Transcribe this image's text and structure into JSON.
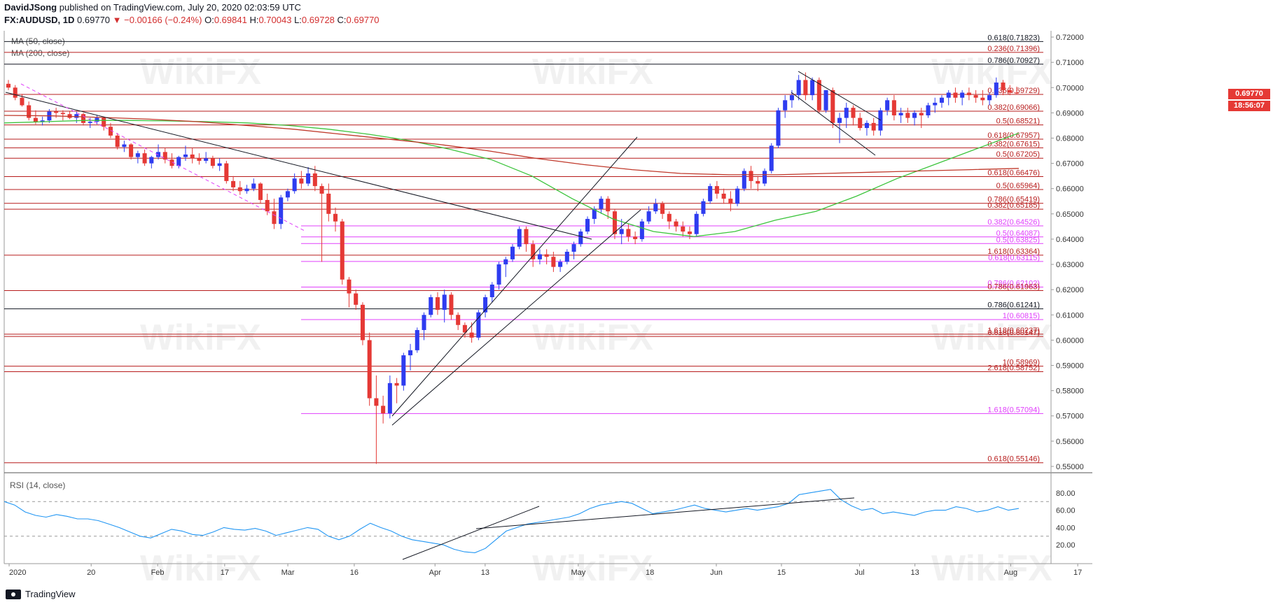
{
  "header": {
    "publisher": "DavidJSong",
    "published_text": "published on TradingView.com, July 20, 2020 02:03:59 UTC",
    "symbol": "FX:AUDUSD, 1D",
    "last": "0.69770",
    "change": "▼ −0.00166 (−0.24%)",
    "o_label": "O:",
    "o": "0.69841",
    "h_label": "H:",
    "h": "0.70043",
    "l_label": "L:",
    "l": "0.69728",
    "c_label": "C:",
    "c": "0.69770"
  },
  "indicators": {
    "ma50": "MA (50, close)",
    "ma200": "MA (200, close)",
    "rsi": "RSI (14, close)"
  },
  "price_badge": {
    "last": "0.69770",
    "countdown": "18:56:07",
    "color": "#e53935"
  },
  "watermark": "WikiFX",
  "footer": {
    "brand": "TradingView"
  },
  "colors": {
    "up": "#2e3cf0",
    "down": "#e53935",
    "ma50": "#3cc43c",
    "ma200": "#c0392b",
    "rsi": "#2196f3",
    "fib_red": "#b71c1c",
    "fib_magenta": "#e040fb",
    "fib_black": "#131722"
  },
  "chart_data": {
    "type": "candlestick",
    "title": "",
    "ylim": [
      0.5475,
      0.7225
    ],
    "yticks": [
      "0.72000",
      "0.71000",
      "0.70000",
      "0.69000",
      "0.68000",
      "0.67000",
      "0.66000",
      "0.65000",
      "0.64000",
      "0.63000",
      "0.62000",
      "0.61000",
      "0.60000",
      "0.59000",
      "0.58000",
      "0.57000",
      "0.56000",
      "0.55000"
    ],
    "xticks": [
      "2020",
      "20",
      "Feb",
      "17",
      "Mar",
      "16",
      "Apr",
      "13",
      "May",
      "18",
      "Jun",
      "15",
      "Jul",
      "13",
      "Aug",
      "17"
    ],
    "rsi_ticks": [
      "80.00",
      "60.00",
      "40.00",
      "20.00"
    ],
    "rsi_levels": [
      70,
      30
    ],
    "fib_levels": [
      {
        "label": "0.618(0.71823)",
        "value": 0.71823,
        "color": "black"
      },
      {
        "label": "0.236(0.71396)",
        "value": 0.71396,
        "color": "red"
      },
      {
        "label": "0.786(0.70927)",
        "value": 0.70927,
        "color": "black"
      },
      {
        "label": "0.236(0.69729)",
        "value": 0.69729,
        "color": "red"
      },
      {
        "label": "0.382(0.69066)",
        "value": 0.69066,
        "color": "red"
      },
      {
        "label": "0.5(0.68521)",
        "value": 0.68521,
        "color": "red"
      },
      {
        "label": "0.618(0.67957)",
        "value": 0.67957,
        "color": "red"
      },
      {
        "label": "0.382(0.67615)",
        "value": 0.67615,
        "color": "red"
      },
      {
        "label": "0.5(0.67205)",
        "value": 0.67205,
        "color": "red"
      },
      {
        "label": "0.618(0.66476)",
        "value": 0.66476,
        "color": "red"
      },
      {
        "label": "0.5(0.65964)",
        "value": 0.65964,
        "color": "red"
      },
      {
        "label": "0.786(0.65419)",
        "value": 0.65419,
        "color": "red"
      },
      {
        "label": "0.382(0.65185)",
        "value": 0.65185,
        "color": "red"
      },
      {
        "label": "0.382(0.64526)",
        "value": 0.64526,
        "color": "magenta"
      },
      {
        "label": "0.5(0.64087)",
        "value": 0.64087,
        "color": "magenta"
      },
      {
        "label": "0.5(0.63825)",
        "value": 0.63825,
        "color": "magenta"
      },
      {
        "label": "1.618(0.63364)",
        "value": 0.63364,
        "color": "red"
      },
      {
        "label": "0.618(0.63115)",
        "value": 0.63115,
        "color": "magenta"
      },
      {
        "label": "0.786(0.62102)",
        "value": 0.62102,
        "color": "magenta"
      },
      {
        "label": "0.786(0.61963)",
        "value": 0.61963,
        "color": "red"
      },
      {
        "label": "0.786(0.61241)",
        "value": 0.61241,
        "color": "black"
      },
      {
        "label": "1(0.60815)",
        "value": 0.60815,
        "color": "magenta"
      },
      {
        "label": "1.618(0.60237)",
        "value": 0.60237,
        "color": "red"
      },
      {
        "label": "0.618(0.60147)",
        "value": 0.60147,
        "color": "red"
      },
      {
        "label": "1(0.58969)",
        "value": 0.58969,
        "color": "red"
      },
      {
        "label": "2.618(0.58752)",
        "value": 0.58752,
        "color": "red"
      },
      {
        "label": "1.618(0.57094)",
        "value": 0.57094,
        "color": "magenta"
      },
      {
        "label": "0.618(0.55146)",
        "value": 0.55146,
        "color": "red"
      }
    ],
    "candles": [
      [
        0.7015,
        0.703,
        0.699,
        0.7
      ],
      [
        0.7,
        0.701,
        0.695,
        0.696
      ],
      [
        0.696,
        0.6975,
        0.6925,
        0.693
      ],
      [
        0.693,
        0.6945,
        0.687,
        0.688
      ],
      [
        0.688,
        0.691,
        0.6855,
        0.6865
      ],
      [
        0.6865,
        0.6885,
        0.685,
        0.687
      ],
      [
        0.687,
        0.6915,
        0.686,
        0.6905
      ],
      [
        0.6905,
        0.692,
        0.688,
        0.69
      ],
      [
        0.69,
        0.691,
        0.687,
        0.6895
      ],
      [
        0.6895,
        0.6905,
        0.6875,
        0.688
      ],
      [
        0.688,
        0.6905,
        0.686,
        0.6895
      ],
      [
        0.6895,
        0.69,
        0.685,
        0.686
      ],
      [
        0.686,
        0.688,
        0.684,
        0.6865
      ],
      [
        0.6865,
        0.689,
        0.6855,
        0.688
      ],
      [
        0.688,
        0.6885,
        0.683,
        0.6845
      ],
      [
        0.6845,
        0.686,
        0.68,
        0.681
      ],
      [
        0.681,
        0.682,
        0.6755,
        0.6765
      ],
      [
        0.6765,
        0.679,
        0.6745,
        0.6775
      ],
      [
        0.6775,
        0.678,
        0.6715,
        0.6725
      ],
      [
        0.6725,
        0.675,
        0.67,
        0.674
      ],
      [
        0.674,
        0.6755,
        0.669,
        0.67
      ],
      [
        0.67,
        0.673,
        0.668,
        0.6725
      ],
      [
        0.6725,
        0.6775,
        0.6715,
        0.6745
      ],
      [
        0.6745,
        0.676,
        0.67,
        0.6715
      ],
      [
        0.6715,
        0.674,
        0.668,
        0.669
      ],
      [
        0.669,
        0.673,
        0.668,
        0.6725
      ],
      [
        0.6725,
        0.677,
        0.671,
        0.6735
      ],
      [
        0.6735,
        0.676,
        0.67,
        0.672
      ],
      [
        0.672,
        0.674,
        0.6695,
        0.671
      ],
      [
        0.671,
        0.6745,
        0.67,
        0.672
      ],
      [
        0.672,
        0.673,
        0.668,
        0.669
      ],
      [
        0.669,
        0.672,
        0.667,
        0.67
      ],
      [
        0.67,
        0.671,
        0.662,
        0.663
      ],
      [
        0.663,
        0.665,
        0.659,
        0.6605
      ],
      [
        0.6605,
        0.663,
        0.6575,
        0.659
      ],
      [
        0.659,
        0.6615,
        0.658,
        0.66
      ],
      [
        0.66,
        0.664,
        0.659,
        0.662
      ],
      [
        0.662,
        0.6625,
        0.654,
        0.6555
      ],
      [
        0.6555,
        0.658,
        0.6495,
        0.651
      ],
      [
        0.651,
        0.656,
        0.644,
        0.646
      ],
      [
        0.646,
        0.6575,
        0.644,
        0.6565
      ],
      [
        0.6565,
        0.66,
        0.655,
        0.659
      ],
      [
        0.659,
        0.666,
        0.658,
        0.664
      ],
      [
        0.664,
        0.667,
        0.66,
        0.662
      ],
      [
        0.662,
        0.6685,
        0.661,
        0.666
      ],
      [
        0.666,
        0.669,
        0.659,
        0.661
      ],
      [
        0.661,
        0.662,
        0.631,
        0.658
      ],
      [
        0.658,
        0.662,
        0.647,
        0.65
      ],
      [
        0.65,
        0.6525,
        0.643,
        0.647
      ],
      [
        0.647,
        0.648,
        0.622,
        0.624
      ],
      [
        0.624,
        0.625,
        0.613,
        0.6185
      ],
      [
        0.6185,
        0.62,
        0.612,
        0.614
      ],
      [
        0.614,
        0.615,
        0.598,
        0.6
      ],
      [
        0.6,
        0.603,
        0.574,
        0.577
      ],
      [
        0.577,
        0.586,
        0.551,
        0.574
      ],
      [
        0.574,
        0.578,
        0.567,
        0.571
      ],
      [
        0.571,
        0.586,
        0.569,
        0.583
      ],
      [
        0.583,
        0.585,
        0.575,
        0.582
      ],
      [
        0.582,
        0.595,
        0.58,
        0.594
      ],
      [
        0.594,
        0.5985,
        0.588,
        0.596
      ],
      [
        0.596,
        0.605,
        0.595,
        0.604
      ],
      [
        0.604,
        0.611,
        0.6,
        0.61
      ],
      [
        0.61,
        0.618,
        0.609,
        0.617
      ],
      [
        0.617,
        0.619,
        0.61,
        0.612
      ],
      [
        0.612,
        0.62,
        0.607,
        0.618
      ],
      [
        0.618,
        0.619,
        0.608,
        0.61
      ],
      [
        0.61,
        0.611,
        0.604,
        0.606
      ],
      [
        0.606,
        0.607,
        0.601,
        0.603
      ],
      [
        0.603,
        0.607,
        0.599,
        0.601
      ],
      [
        0.601,
        0.612,
        0.6,
        0.611
      ],
      [
        0.611,
        0.618,
        0.609,
        0.617
      ],
      [
        0.617,
        0.623,
        0.615,
        0.622
      ],
      [
        0.622,
        0.631,
        0.62,
        0.63
      ],
      [
        0.63,
        0.633,
        0.625,
        0.632
      ],
      [
        0.632,
        0.638,
        0.631,
        0.637
      ],
      [
        0.637,
        0.645,
        0.636,
        0.644
      ],
      [
        0.644,
        0.645,
        0.635,
        0.638
      ],
      [
        0.638,
        0.6395,
        0.629,
        0.632
      ],
      [
        0.632,
        0.636,
        0.63,
        0.634
      ],
      [
        0.634,
        0.636,
        0.63,
        0.633
      ],
      [
        0.633,
        0.635,
        0.627,
        0.629
      ],
      [
        0.629,
        0.632,
        0.627,
        0.631
      ],
      [
        0.631,
        0.636,
        0.63,
        0.635
      ],
      [
        0.635,
        0.639,
        0.632,
        0.638
      ],
      [
        0.638,
        0.644,
        0.637,
        0.643
      ],
      [
        0.643,
        0.649,
        0.642,
        0.648
      ],
      [
        0.648,
        0.653,
        0.646,
        0.652
      ],
      [
        0.652,
        0.657,
        0.65,
        0.656
      ],
      [
        0.656,
        0.657,
        0.648,
        0.651
      ],
      [
        0.651,
        0.652,
        0.64,
        0.642
      ],
      [
        0.642,
        0.648,
        0.638,
        0.644
      ],
      [
        0.644,
        0.646,
        0.639,
        0.641
      ],
      [
        0.641,
        0.643,
        0.638,
        0.64
      ],
      [
        0.64,
        0.648,
        0.639,
        0.647
      ],
      [
        0.647,
        0.653,
        0.646,
        0.651
      ],
      [
        0.651,
        0.656,
        0.65,
        0.654
      ],
      [
        0.654,
        0.655,
        0.648,
        0.65
      ],
      [
        0.65,
        0.651,
        0.644,
        0.647
      ],
      [
        0.647,
        0.648,
        0.643,
        0.645
      ],
      [
        0.645,
        0.647,
        0.641,
        0.643
      ],
      [
        0.643,
        0.645,
        0.64,
        0.642
      ],
      [
        0.642,
        0.651,
        0.641,
        0.65
      ],
      [
        0.65,
        0.656,
        0.649,
        0.655
      ],
      [
        0.655,
        0.662,
        0.654,
        0.661
      ],
      [
        0.661,
        0.663,
        0.656,
        0.658
      ],
      [
        0.658,
        0.66,
        0.654,
        0.656
      ],
      [
        0.656,
        0.659,
        0.651,
        0.654
      ],
      [
        0.654,
        0.661,
        0.653,
        0.66
      ],
      [
        0.66,
        0.668,
        0.659,
        0.667
      ],
      [
        0.667,
        0.669,
        0.66,
        0.663
      ],
      [
        0.663,
        0.665,
        0.659,
        0.662
      ],
      [
        0.662,
        0.668,
        0.661,
        0.667
      ],
      [
        0.667,
        0.678,
        0.666,
        0.677
      ],
      [
        0.677,
        0.692,
        0.676,
        0.691
      ],
      [
        0.691,
        0.697,
        0.688,
        0.695
      ],
      [
        0.695,
        0.699,
        0.692,
        0.697
      ],
      [
        0.697,
        0.705,
        0.695,
        0.703
      ],
      [
        0.703,
        0.706,
        0.695,
        0.697
      ],
      [
        0.697,
        0.704,
        0.695,
        0.703
      ],
      [
        0.703,
        0.704,
        0.69,
        0.691
      ],
      [
        0.691,
        0.699,
        0.69,
        0.699
      ],
      [
        0.699,
        0.7,
        0.684,
        0.686
      ],
      [
        0.686,
        0.69,
        0.678,
        0.688
      ],
      [
        0.688,
        0.694,
        0.684,
        0.692
      ],
      [
        0.692,
        0.693,
        0.685,
        0.688
      ],
      [
        0.688,
        0.69,
        0.683,
        0.684
      ],
      [
        0.684,
        0.687,
        0.681,
        0.686
      ],
      [
        0.686,
        0.688,
        0.681,
        0.683
      ],
      [
        0.683,
        0.692,
        0.681,
        0.691
      ],
      [
        0.691,
        0.696,
        0.689,
        0.695
      ],
      [
        0.695,
        0.697,
        0.687,
        0.689
      ],
      [
        0.689,
        0.692,
        0.686,
        0.69
      ],
      [
        0.69,
        0.692,
        0.686,
        0.688
      ],
      [
        0.688,
        0.691,
        0.685,
        0.69
      ],
      [
        0.69,
        0.692,
        0.684,
        0.689
      ],
      [
        0.689,
        0.694,
        0.688,
        0.693
      ],
      [
        0.693,
        0.696,
        0.69,
        0.694
      ],
      [
        0.694,
        0.697,
        0.692,
        0.696
      ],
      [
        0.696,
        0.699,
        0.693,
        0.698
      ],
      [
        0.698,
        0.7,
        0.694,
        0.696
      ],
      [
        0.696,
        0.699,
        0.693,
        0.698
      ],
      [
        0.698,
        0.7,
        0.695,
        0.697
      ],
      [
        0.697,
        0.699,
        0.694,
        0.696
      ],
      [
        0.696,
        0.699,
        0.693,
        0.695
      ],
      [
        0.695,
        0.698,
        0.693,
        0.697
      ],
      [
        0.697,
        0.704,
        0.696,
        0.702
      ],
      [
        0.702,
        0.703,
        0.697,
        0.699
      ],
      [
        0.699,
        0.701,
        0.697,
        0.698
      ],
      [
        0.698,
        0.7004,
        0.6972,
        0.6977
      ]
    ],
    "ma50": [
      0.686,
      0.6865,
      0.687,
      0.687,
      0.6868,
      0.6865,
      0.686,
      0.685,
      0.6835,
      0.6815,
      0.679,
      0.6755,
      0.6715,
      0.665,
      0.656,
      0.648,
      0.643,
      0.641,
      0.643,
      0.6475,
      0.651,
      0.657,
      0.664,
      0.67,
      0.676,
      0.682
    ],
    "ma200": [
      0.689,
      0.6888,
      0.6882,
      0.6875,
      0.6865,
      0.685,
      0.6835,
      0.6815,
      0.6795,
      0.6775,
      0.675,
      0.672,
      0.6695,
      0.6675,
      0.666,
      0.6655,
      0.6655,
      0.666,
      0.6665,
      0.667,
      0.6675,
      0.668
    ],
    "rsi": [
      70,
      66,
      58,
      54,
      52,
      55,
      53,
      50,
      50,
      48,
      44,
      40,
      35,
      30,
      28,
      33,
      38,
      36,
      32,
      31,
      35,
      40,
      38,
      37,
      39,
      36,
      31,
      34,
      37,
      40,
      38,
      30,
      26,
      30,
      38,
      45,
      40,
      36,
      30,
      26,
      24,
      22,
      20,
      15,
      12,
      11,
      16,
      26,
      36,
      40,
      44,
      46,
      48,
      50,
      52,
      56,
      62,
      66,
      68,
      70,
      68,
      62,
      56,
      58,
      60,
      63,
      66,
      62,
      60,
      58,
      60,
      62,
      60,
      62,
      64,
      68,
      78,
      80,
      82,
      84,
      72,
      65,
      60,
      62,
      56,
      58,
      56,
      54,
      58,
      60,
      60,
      64,
      62,
      58,
      60,
      64,
      60,
      62
    ]
  }
}
